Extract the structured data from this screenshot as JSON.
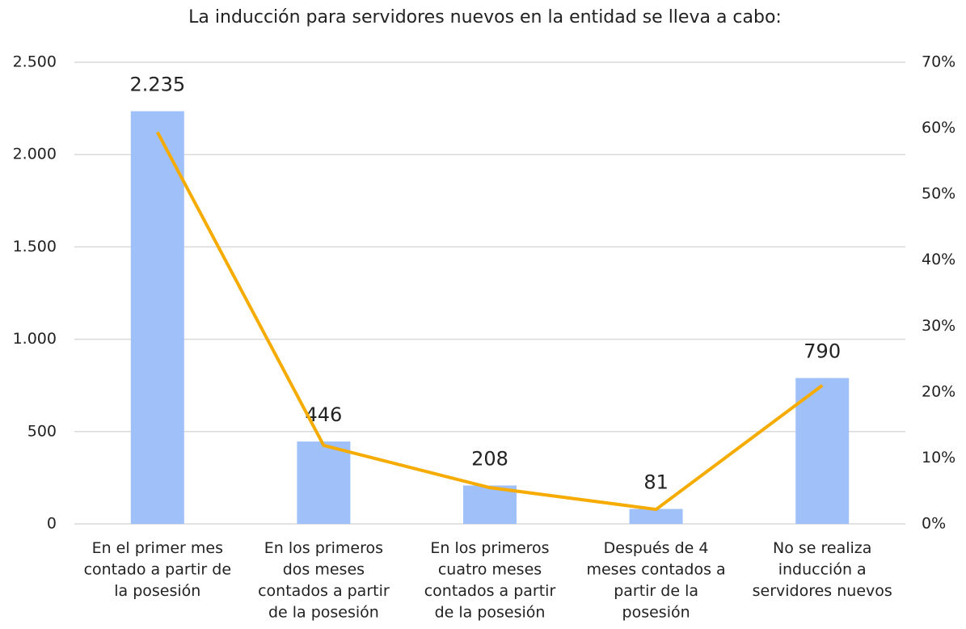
{
  "chart_data": {
    "type": "bar",
    "title": "La inducción para servidores nuevos en la entidad se lleva a cabo:",
    "categories": [
      [
        "En el primer mes",
        "contado a partir de",
        "la posesión"
      ],
      [
        "En los primeros",
        "dos meses",
        "contados a partir",
        "de la posesión"
      ],
      [
        "En los primeros",
        "cuatro meses",
        "contados a partir",
        "de la posesión"
      ],
      [
        "Después de 4",
        "meses contados a",
        "partir de la",
        "posesión"
      ],
      [
        "No se realiza",
        "inducción a",
        "servidores nuevos"
      ]
    ],
    "series": [
      {
        "type": "bar",
        "color": "#a0c0fa",
        "values": [
          2235,
          446,
          208,
          81,
          790
        ],
        "value_labels": [
          "2.235",
          "446",
          "208",
          "81",
          "790"
        ]
      },
      {
        "type": "line",
        "axis": "y2",
        "color": "#f5ab00",
        "values": [
          59.4,
          11.9,
          5.5,
          2.2,
          21.0
        ]
      }
    ],
    "ylim": [
      0,
      2500
    ],
    "yticks": [
      0,
      500,
      {
        "value": 1000,
        "label": "1.000"
      },
      {
        "value": 1500,
        "label": "1.500"
      },
      {
        "value": 2000,
        "label": "2.000"
      },
      {
        "value": 2500,
        "label": "2.500"
      }
    ],
    "y2lim": [
      0,
      70
    ],
    "y2ticks": [
      {
        "value": 0,
        "label": "0%"
      },
      {
        "value": 10,
        "label": "10%"
      },
      {
        "value": 20,
        "label": "20%"
      },
      {
        "value": 30,
        "label": "30%"
      },
      {
        "value": 40,
        "label": "40%"
      },
      {
        "value": 50,
        "label": "50%"
      },
      {
        "value": 60,
        "label": "60%"
      },
      {
        "value": 70,
        "label": "70%"
      }
    ],
    "grid": true
  }
}
